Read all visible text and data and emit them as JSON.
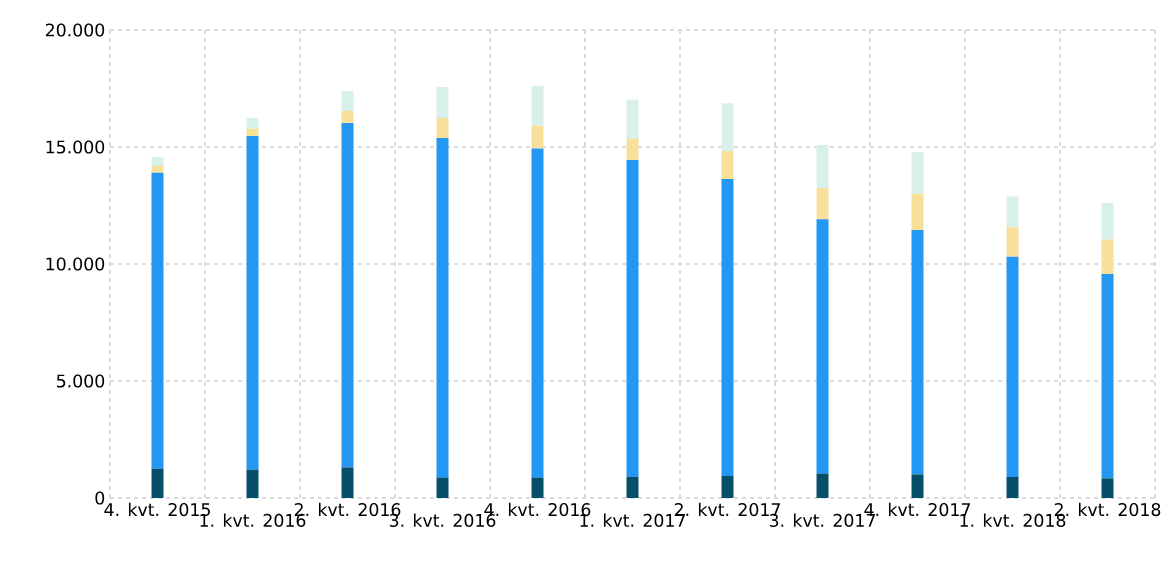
{
  "chart_data": {
    "type": "bar",
    "stacked": true,
    "grid": true,
    "categories": [
      "4. kvt. 2015",
      "1. kvt. 2016",
      "2. kvt. 2016",
      "3. kvt. 2016",
      "4. kvt. 2016",
      "1. kvt. 2017",
      "2. kvt. 2017",
      "3. kvt. 2017",
      "4. kvt. 2017",
      "1. kvt. 2018",
      "2. kvt. 2018"
    ],
    "series": [
      {
        "color": "#054f6b",
        "values": [
          1250,
          1210,
          1310,
          870,
          870,
          910,
          940,
          1040,
          1010,
          900,
          840
        ]
      },
      {
        "color": "#2497f3",
        "values": [
          12650,
          14260,
          14720,
          14510,
          14070,
          13530,
          12690,
          10870,
          10440,
          9410,
          8730
        ]
      },
      {
        "color": "#f8e09a",
        "values": [
          290,
          310,
          510,
          860,
          970,
          920,
          1200,
          1340,
          1550,
          1260,
          1470
        ]
      },
      {
        "color": "#d8f0ea",
        "values": [
          380,
          460,
          850,
          1320,
          1700,
          1660,
          2040,
          1840,
          1790,
          1320,
          1570
        ]
      }
    ],
    "ylim": [
      0,
      20000
    ],
    "yticks": [
      {
        "value": 0,
        "label": "0"
      },
      {
        "value": 5000,
        "label": "5.000"
      },
      {
        "value": 10000,
        "label": "10.000"
      },
      {
        "value": 15000,
        "label": "15.000"
      },
      {
        "value": 20000,
        "label": "20.000"
      }
    ]
  }
}
